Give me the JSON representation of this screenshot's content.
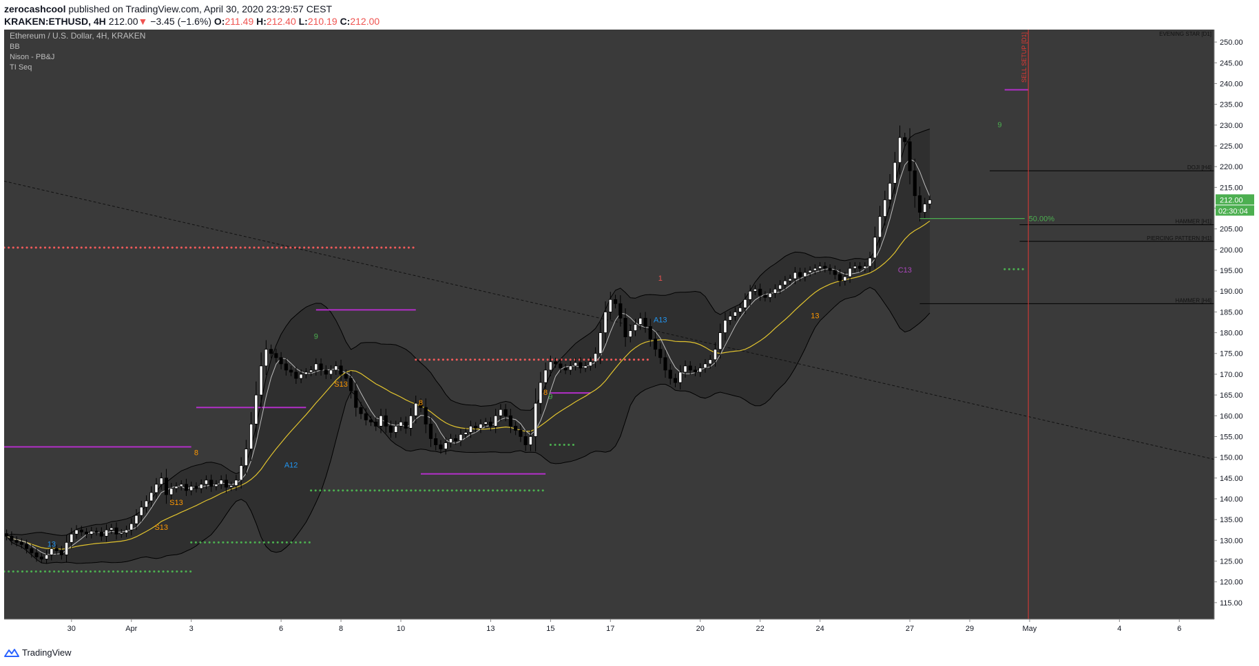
{
  "header": {
    "author": "zerocashcool",
    "published_text": "published on TradingView.com, April 30, 2020 23:29:57 CEST",
    "symbol": "KRAKEN:ETHUSD, 4H",
    "last": "212.00",
    "change_arrow": "▼",
    "change": "−3.45 (−1.6%)",
    "o_label": "O:",
    "o_value": "211.49",
    "h_label": "H:",
    "h_value": "212.40",
    "l_label": "L:",
    "l_value": "210.19",
    "c_label": "C:",
    "c_value": "212.00"
  },
  "legend": {
    "title": "Ethereum / U.S. Dollar, 4H, KRAKEN",
    "indicators": [
      "BB",
      "Nison - PB&J",
      "TI Seq"
    ]
  },
  "footer": {
    "brand": "TradingView",
    "brand_icon": "tradingview-logo-icon"
  },
  "colors": {
    "background": "#3a3a3a",
    "up": "#ffffff",
    "down": "#000000",
    "resistance_dots": "#f55b5b",
    "support_dots": "#4caf50",
    "magenta_levels": "#b32fc9",
    "sma": "#e3c52f",
    "fast_ma": "#bdbdbd",
    "setup_line": "#e53935",
    "price_badge": "#4caf50"
  },
  "chart_data": {
    "type": "candlestick",
    "title": "Ethereum / U.S. Dollar, 4H, KRAKEN",
    "timeframe": "4H",
    "y_range": [
      111,
      253
    ],
    "y_ticks": [
      115,
      120,
      125,
      130,
      135,
      140,
      145,
      150,
      155,
      160,
      165,
      170,
      175,
      180,
      185,
      190,
      195,
      200,
      205,
      210,
      215,
      220,
      225,
      230,
      235,
      240,
      245,
      250
    ],
    "y_tick_labels": [
      "115.00",
      "120.00",
      "125.00",
      "130.00",
      "135.00",
      "140.00",
      "145.00",
      "150.00",
      "155.00",
      "160.00",
      "165.00",
      "170.00",
      "175.00",
      "180.00",
      "185.00",
      "190.00",
      "195.00",
      "200.00",
      "205.00",
      "210.00",
      "215.00",
      "220.00",
      "225.00",
      "230.00",
      "235.00",
      "240.00",
      "245.00",
      "250.00"
    ],
    "x_range": [
      "2020-03-27T18:00",
      "2020-05-07T04:00"
    ],
    "x_tick_labels": [
      {
        "label": "30",
        "date": "2020-03-30"
      },
      {
        "label": "Apr",
        "date": "2020-04-01"
      },
      {
        "label": "3",
        "date": "2020-04-03"
      },
      {
        "label": "6",
        "date": "2020-04-06"
      },
      {
        "label": "8",
        "date": "2020-04-08"
      },
      {
        "label": "10",
        "date": "2020-04-10"
      },
      {
        "label": "13",
        "date": "2020-04-13"
      },
      {
        "label": "15",
        "date": "2020-04-15"
      },
      {
        "label": "17",
        "date": "2020-04-17"
      },
      {
        "label": "20",
        "date": "2020-04-20"
      },
      {
        "label": "22",
        "date": "2020-04-22"
      },
      {
        "label": "24",
        "date": "2020-04-24"
      },
      {
        "label": "27",
        "date": "2020-04-27"
      },
      {
        "label": "29",
        "date": "2020-04-29"
      },
      {
        "label": "May",
        "date": "2020-05-01"
      },
      {
        "label": "4",
        "date": "2020-05-04"
      },
      {
        "label": "6",
        "date": "2020-05-06"
      }
    ],
    "close_series": {
      "start": "2020-03-27T20:00",
      "interval_hours": 4,
      "values": [
        131.0,
        130.0,
        129.5,
        129.0,
        128.0,
        127.0,
        126.0,
        125.5,
        126.5,
        128.0,
        127.5,
        126.5,
        129.5,
        131.5,
        132.5,
        132.0,
        131.5,
        132.2,
        132.0,
        131.0,
        132.5,
        133.0,
        131.5,
        131.8,
        132.5,
        134.0,
        136.0,
        138.0,
        139.5,
        141.5,
        143.5,
        145.0,
        141.0,
        142.5,
        143.0,
        143.5,
        142.0,
        143.0,
        142.5,
        143.5,
        144.5,
        143.0,
        143.5,
        144.5,
        142.8,
        143.2,
        144.5,
        148.0,
        152.0,
        158.0,
        165.0,
        172.0,
        176.0,
        175.0,
        174.0,
        172.5,
        171.0,
        170.5,
        169.0,
        170.0,
        170.5,
        171.0,
        172.5,
        171.0,
        170.0,
        171.0,
        172.0,
        170.0,
        169.0,
        166.0,
        162.0,
        160.5,
        159.0,
        158.5,
        157.5,
        160.0,
        157.5,
        156.0,
        157.5,
        158.5,
        157.0,
        160.0,
        163.0,
        162.0,
        158.0,
        154.5,
        153.0,
        152.0,
        153.5,
        154.5,
        154.0,
        155.5,
        156.0,
        157.5,
        157.0,
        158.0,
        158.5,
        157.5,
        160.0,
        161.5,
        160.0,
        157.5,
        156.5,
        155.0,
        153.0,
        155.0,
        163.0,
        168.0,
        171.0,
        173.0,
        172.5,
        171.5,
        171.0,
        172.0,
        172.8,
        171.5,
        172.0,
        173.0,
        175.0,
        180.0,
        185.0,
        188.0,
        187.0,
        183.5,
        179.0,
        180.5,
        182.0,
        183.5,
        181.5,
        178.5,
        176.0,
        174.0,
        171.0,
        169.0,
        168.0,
        170.5,
        172.0,
        171.0,
        170.5,
        171.5,
        172.5,
        173.5,
        176.0,
        180.0,
        183.0,
        184.0,
        185.0,
        186.0,
        188.0,
        190.0,
        190.5,
        189.0,
        188.5,
        189.5,
        190.5,
        191.5,
        192.5,
        193.0,
        194.5,
        193.5,
        194.5,
        195.0,
        195.5,
        196.0,
        195.5,
        195.0,
        194.0,
        192.5,
        193.5,
        195.5,
        196.0,
        195.5,
        196.0,
        198.0,
        203.0,
        208.0,
        212.0,
        216.0,
        221.0,
        227.0,
        226.0,
        219.0,
        213.0,
        209.0,
        211.0,
        212.0
      ]
    },
    "bollinger_basis": "20-period SMA of close",
    "bollinger_multiplier": 2,
    "horizontal_levels": [
      {
        "name": "resistance-dots-1",
        "style": "red-dots",
        "price": 200.5,
        "from": "2020-03-27T18:00",
        "to": "2020-04-10T12:00"
      },
      {
        "name": "resistance-dots-2",
        "style": "red-dots",
        "price": 173.5,
        "from": "2020-04-10T12:00",
        "to": "2020-04-18T08:00"
      },
      {
        "name": "support-dots-1",
        "style": "green-dots",
        "price": 122.5,
        "from": "2020-03-27T18:00",
        "to": "2020-04-03T00:00"
      },
      {
        "name": "support-dots-2",
        "style": "green-dots",
        "price": 129.5,
        "from": "2020-04-03T00:00",
        "to": "2020-04-07T00:00"
      },
      {
        "name": "support-dots-3",
        "style": "green-dots",
        "price": 142.0,
        "from": "2020-04-07T00:00",
        "to": "2020-04-14T20:00"
      },
      {
        "name": "support-dots-4",
        "style": "green-dots",
        "price": 153.0,
        "from": "2020-04-15T00:00",
        "to": "2020-04-15T20:00"
      },
      {
        "name": "support-dots-5",
        "style": "green-dots",
        "price": 195.3,
        "from": "2020-04-30T04:00",
        "to": "2020-04-30T20:00"
      },
      {
        "name": "magenta-level-1",
        "style": "magenta",
        "price": 152.5,
        "from": "2020-03-27T18:00",
        "to": "2020-04-03T00:00"
      },
      {
        "name": "magenta-level-2",
        "style": "magenta",
        "price": 162.0,
        "from": "2020-04-03T04:00",
        "to": "2020-04-06T20:00"
      },
      {
        "name": "magenta-level-3",
        "style": "magenta",
        "price": 185.5,
        "from": "2020-04-07T04:00",
        "to": "2020-04-10T12:00"
      },
      {
        "name": "magenta-level-4",
        "style": "magenta",
        "price": 146.0,
        "from": "2020-04-10T16:00",
        "to": "2020-04-14T20:00"
      },
      {
        "name": "magenta-level-5",
        "style": "magenta",
        "price": 165.5,
        "from": "2020-04-15T00:00",
        "to": "2020-04-16T08:00"
      },
      {
        "name": "magenta-level-6",
        "style": "magenta",
        "price": 238.5,
        "from": "2020-04-30T04:00",
        "to": "2020-04-30T23:00"
      }
    ],
    "pattern_lines": [
      {
        "label": "DOJI [H4]",
        "price": 219.0,
        "from": "2020-04-29T16:00"
      },
      {
        "label": "HAMMER [H1]",
        "price": 206.0,
        "from": "2020-04-30T16:00"
      },
      {
        "label": "PIERCING PATTERN [H1]",
        "price": 202.0,
        "from": "2020-04-30T16:00"
      },
      {
        "label": "HAMMER [H4]",
        "price": 187.0,
        "from": "2020-04-27T08:00"
      },
      {
        "label": "EVENING STAR [D1]",
        "price": 253.0,
        "from": "2020-05-01T00:00"
      }
    ],
    "fib_line": {
      "label": "50.00%",
      "price": 207.5,
      "from": "2020-04-27T08:00",
      "to": "2020-04-30T20:00"
    },
    "trendline": {
      "from": {
        "date": "2020-03-27T18:00",
        "price": 216.5
      },
      "to": {
        "date": "2020-05-07T04:00",
        "price": 149.5
      }
    },
    "sell_setup": {
      "label": "SELL SETUP [D1]",
      "date": "2020-04-30T23:00"
    },
    "seq_labels": [
      {
        "text": "13",
        "date": "2020-03-29T08:00",
        "price": 128.5,
        "color": "#2196f3"
      },
      {
        "text": "S13",
        "date": "2020-04-02T00:00",
        "price": 132.5,
        "color": "#ff9800"
      },
      {
        "text": "S13",
        "date": "2020-04-02T12:00",
        "price": 138.5,
        "color": "#ff9800"
      },
      {
        "text": "8",
        "date": "2020-04-03T04:00",
        "price": 150.5,
        "color": "#ff9800"
      },
      {
        "text": "A12",
        "date": "2020-04-06T08:00",
        "price": 147.5,
        "color": "#2196f3"
      },
      {
        "text": "9",
        "date": "2020-04-07T04:00",
        "price": 178.5,
        "color": "#4caf50"
      },
      {
        "text": "S13",
        "date": "2020-04-08T00:00",
        "price": 167.0,
        "color": "#ff9800"
      },
      {
        "text": "8",
        "date": "2020-04-10T16:00",
        "price": 162.5,
        "color": "#ff9800"
      },
      {
        "text": "8",
        "date": "2020-04-14T20:00",
        "price": 165.0,
        "color": "#ff9800"
      },
      {
        "text": "9",
        "date": "2020-04-15T00:00",
        "price": 164.0,
        "color": "#4caf50"
      },
      {
        "text": "A13",
        "date": "2020-04-18T16:00",
        "price": 182.5,
        "color": "#2196f3"
      },
      {
        "text": "1",
        "date": "2020-04-18T16:00",
        "price": 192.5,
        "color": "#ef5350"
      },
      {
        "text": "C13",
        "date": "2020-04-26T20:00",
        "price": 194.5,
        "color": "#ab47bc"
      },
      {
        "text": "13",
        "date": "2020-04-23T20:00",
        "price": 183.5,
        "color": "#ff9800"
      },
      {
        "text": "9",
        "date": "2020-04-30T00:00",
        "price": 229.5,
        "color": "#4caf50"
      }
    ],
    "price_badge": "212.00",
    "countdown_badge": "02:30:04",
    "last_price": 212.0
  }
}
